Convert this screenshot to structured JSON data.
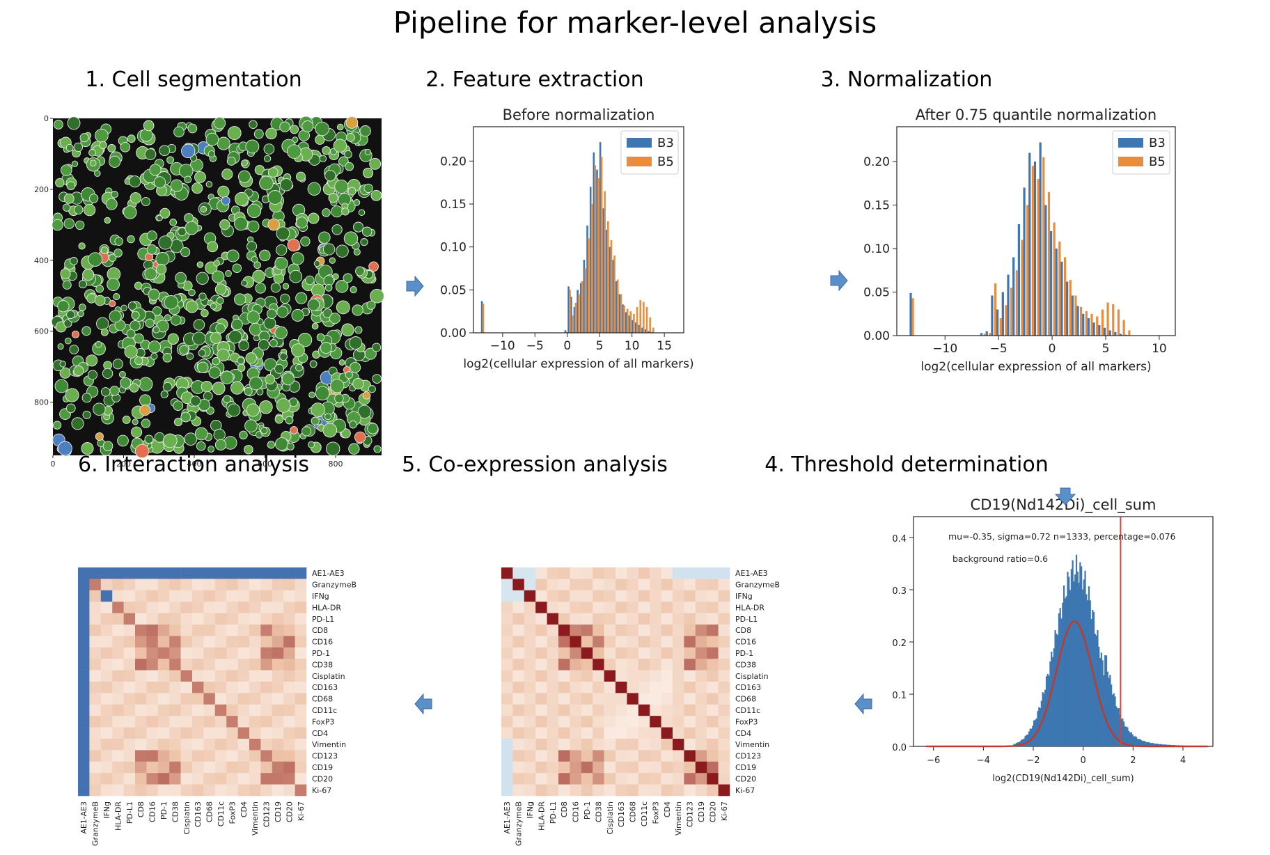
{
  "title": "Pipeline for marker-level analysis",
  "steps": {
    "s1": "1. Cell segmentation",
    "s2": "2. Feature extraction",
    "s3": "3. Normalization",
    "s4": "4. Threshold determination",
    "s5": "5. Co-expression analysis",
    "s6": "6. Interaction analysis"
  },
  "colors": {
    "b3": "#3d76b0",
    "b5": "#ea8c3c",
    "fit": "#c0392b",
    "threshold": "#d9433a",
    "arrow": "#5b8fc9"
  },
  "chart_data": [
    {
      "id": "segmentation",
      "type": "image",
      "x_ticks": [
        "0",
        "200",
        "400",
        "600",
        "800"
      ],
      "y_ticks": [
        "0",
        "200",
        "400",
        "600",
        "800"
      ],
      "xlim": [
        0,
        930
      ],
      "ylim": [
        0,
        950
      ]
    },
    {
      "id": "before",
      "type": "bar",
      "title": "Before normalization",
      "xlabel": "log2(cellular expression of all markers)",
      "x_ticks": [
        "−10",
        "−5",
        "0",
        "5",
        "10",
        "15"
      ],
      "y_ticks": [
        "0.00",
        "0.05",
        "0.10",
        "0.15",
        "0.20"
      ],
      "xlim": [
        -14.5,
        18
      ],
      "ylim": [
        0,
        0.24
      ],
      "series": [
        {
          "name": "B3",
          "x": [
            -13.2,
            -0.3,
            0.2,
            0.6,
            1.1,
            1.6,
            2.1,
            2.6,
            3.1,
            3.6,
            4.1,
            4.6,
            5.1,
            5.6,
            6.1,
            6.6,
            7.1,
            7.6,
            8.1,
            8.6,
            9.1,
            9.6,
            10.1,
            10.6,
            11.1,
            11.6,
            12.1,
            12.6,
            13.1
          ],
          "values": [
            0.037,
            0.003,
            0.054,
            0.042,
            0.03,
            0.05,
            0.058,
            0.085,
            0.125,
            0.17,
            0.21,
            0.19,
            0.222,
            0.145,
            0.12,
            0.1,
            0.085,
            0.06,
            0.045,
            0.033,
            0.024,
            0.02,
            0.015,
            0.012,
            0.009,
            0.006,
            0.004,
            0.002,
            0.001
          ]
        },
        {
          "name": "B5",
          "x": [
            -13.0,
            -0.1,
            0.4,
            0.8,
            1.3,
            1.8,
            2.3,
            2.8,
            3.3,
            3.8,
            4.3,
            4.8,
            5.3,
            5.8,
            6.3,
            6.8,
            7.3,
            7.8,
            8.3,
            8.8,
            9.3,
            9.8,
            10.3,
            10.8,
            11.3,
            11.8,
            12.3,
            12.8,
            13.3
          ],
          "values": [
            0.034,
            0.001,
            0.05,
            0.02,
            0.035,
            0.045,
            0.06,
            0.075,
            0.11,
            0.15,
            0.195,
            0.18,
            0.205,
            0.165,
            0.13,
            0.108,
            0.09,
            0.062,
            0.045,
            0.032,
            0.028,
            0.025,
            0.022,
            0.03,
            0.038,
            0.036,
            0.03,
            0.018,
            0.006
          ]
        }
      ],
      "legend": "top-right"
    },
    {
      "id": "after",
      "type": "bar",
      "title": "After 0.75 quantile normalization",
      "xlabel": "log2(cellular expression of all markers)",
      "x_ticks": [
        "−10",
        "−5",
        "0",
        "5",
        "10"
      ],
      "y_ticks": [
        "0.00",
        "0.05",
        "0.10",
        "0.15",
        "0.20"
      ],
      "xlim": [
        -14.5,
        11.5
      ],
      "ylim": [
        0,
        0.24
      ],
      "series": [
        {
          "name": "B3",
          "x": [
            -13.2,
            -6.6,
            -6.1,
            -5.6,
            -5.1,
            -4.6,
            -4.1,
            -3.6,
            -3.1,
            -2.6,
            -2.1,
            -1.6,
            -1.1,
            -0.6,
            -0.1,
            0.4,
            0.9,
            1.4,
            1.9,
            2.4,
            2.9,
            3.4,
            3.9,
            4.4,
            4.9,
            5.4,
            5.9,
            6.4,
            6.9
          ],
          "values": [
            0.049,
            0.003,
            0.005,
            0.046,
            0.03,
            0.05,
            0.07,
            0.09,
            0.128,
            0.17,
            0.21,
            0.2,
            0.222,
            0.15,
            0.12,
            0.1,
            0.085,
            0.062,
            0.046,
            0.034,
            0.025,
            0.02,
            0.015,
            0.012,
            0.009,
            0.006,
            0.004,
            0.002,
            0.001
          ]
        },
        {
          "name": "B5",
          "x": [
            -13.0,
            -6.3,
            -5.8,
            -5.3,
            -4.8,
            -4.3,
            -3.8,
            -3.3,
            -2.8,
            -2.3,
            -1.8,
            -1.3,
            -0.8,
            -0.3,
            0.2,
            0.7,
            1.2,
            1.7,
            2.2,
            2.7,
            3.2,
            3.7,
            4.2,
            4.7,
            5.2,
            5.7,
            6.2,
            6.7,
            7.2
          ],
          "values": [
            0.043,
            0.002,
            0.003,
            0.06,
            0.02,
            0.035,
            0.055,
            0.075,
            0.11,
            0.15,
            0.195,
            0.18,
            0.205,
            0.165,
            0.13,
            0.108,
            0.09,
            0.064,
            0.046,
            0.033,
            0.028,
            0.025,
            0.022,
            0.03,
            0.038,
            0.036,
            0.03,
            0.018,
            0.006
          ]
        }
      ],
      "legend": "top-right"
    },
    {
      "id": "threshold",
      "type": "bar",
      "title": "CD19(Nd142Di)_cell_sum",
      "xlabel": "log2(CD19(Nd142Di)_cell_sum)",
      "annotation1": "mu=-0.35, sigma=0.72  n=1333, percentage=0.076",
      "annotation2": "background ratio=0.6",
      "x_ticks": [
        "−6",
        "−4",
        "−2",
        "0",
        "2",
        "4"
      ],
      "y_ticks": [
        "0.0",
        "0.1",
        "0.2",
        "0.3",
        "0.4"
      ],
      "xlim": [
        -6.8,
        5.2
      ],
      "ylim": [
        0,
        0.44
      ],
      "mu": -0.35,
      "sigma": 0.72,
      "fit_scale": 0.6,
      "threshold_x": 1.5
    }
  ],
  "heatmap_labels": [
    "AE1-AE3",
    "GranzymeB",
    "IFNg",
    "HLA-DR",
    "PD-L1",
    "CD8",
    "CD16",
    "PD-1",
    "CD38",
    "Cisplatin",
    "CD163",
    "CD68",
    "CD11c",
    "FoxP3",
    "CD4",
    "Vimentin",
    "CD123",
    "CD19",
    "CD20",
    "Ki-67"
  ]
}
